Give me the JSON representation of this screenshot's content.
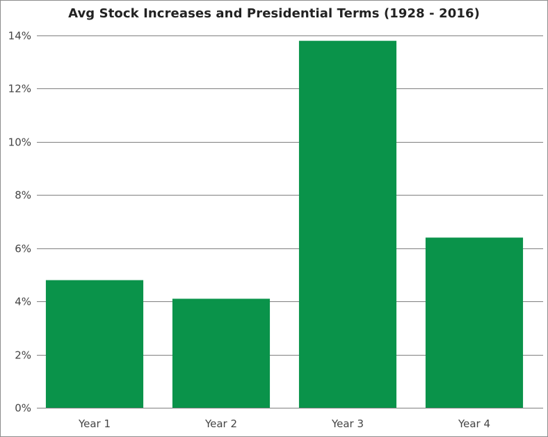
{
  "chart_data": {
    "type": "bar",
    "title": "Avg Stock Increases and Presidential Terms (1928 - 2016)",
    "xlabel": "",
    "ylabel": "",
    "categories": [
      "Year 1",
      "Year 2",
      "Year 3",
      "Year 4"
    ],
    "values": [
      4.8,
      4.1,
      13.8,
      6.4
    ],
    "ylim": [
      0,
      14
    ],
    "yticks": [
      0,
      2,
      4,
      6,
      8,
      10,
      12,
      14
    ],
    "ytick_labels": [
      "0%",
      "2%",
      "4%",
      "6%",
      "8%",
      "10%",
      "12%",
      "14%"
    ],
    "grid": "horizontal",
    "legend": "none",
    "bar_color": "#0a934a",
    "grid_color": "#7f7f7f"
  }
}
